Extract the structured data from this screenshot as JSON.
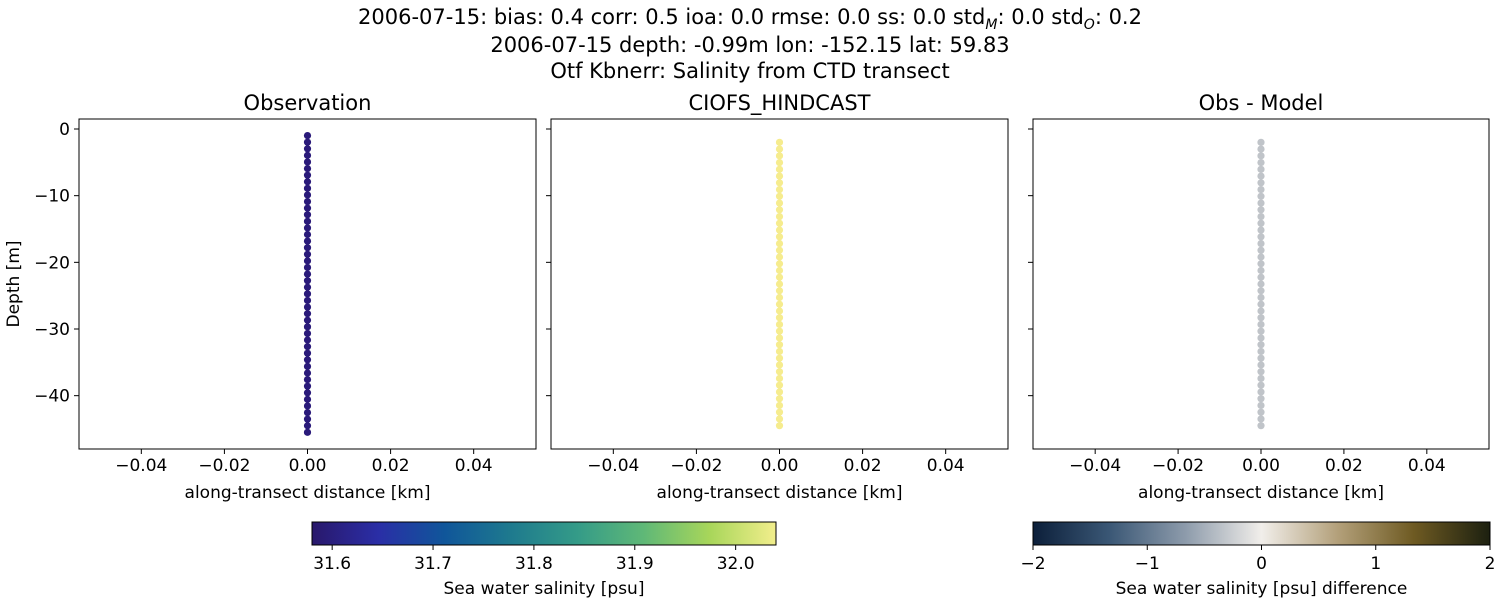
{
  "figure": {
    "title_lines": [
      "2006-07-15: bias: 0.4  corr: 0.5  ioa: 0.0  rmse: 0.0  ss: 0.0  std",
      "2006-07-15 depth: -0.99m lon: -152.15 lat: 59.83",
      "Otf Kbnerr: Salinity from CTD transect"
    ],
    "title_stats_suffix": [
      {
        "sub": "M",
        "text": ": 0.0  std"
      },
      {
        "sub": "O",
        "text": ": 0.2"
      }
    ]
  },
  "chart_data": [
    {
      "type": "scatter",
      "title": "Observation",
      "xlabel": "along-transect distance [km]",
      "ylabel": "Depth [m]",
      "xlim": [
        -0.055,
        0.055
      ],
      "ylim": [
        -48,
        1.5
      ],
      "xticks": [
        -0.04,
        -0.02,
        0.0,
        0.02,
        0.04
      ],
      "xtick_labels": [
        "−0.04",
        "−0.02",
        "0.00",
        "0.02",
        "0.04"
      ],
      "yticks": [
        0,
        -10,
        -20,
        -30,
        -40
      ],
      "ytick_labels": [
        "0",
        "−10",
        "−20",
        "−30",
        "−40"
      ],
      "grid": false,
      "x_constant": 0.0,
      "depth_range": [
        -0.99,
        -45.5
      ],
      "point_count": 46,
      "colormap": "haline",
      "color_value": 31.6,
      "point_color": "#2a1a7a"
    },
    {
      "type": "scatter",
      "title": "CIOFS_HINDCAST",
      "xlabel": "along-transect distance [km]",
      "ylabel": "",
      "xlim": [
        -0.055,
        0.055
      ],
      "ylim": [
        -48,
        1.5
      ],
      "xticks": [
        -0.04,
        -0.02,
        0.0,
        0.02,
        0.04
      ],
      "xtick_labels": [
        "−0.04",
        "−0.02",
        "0.00",
        "0.02",
        "0.04"
      ],
      "yticks": [
        0,
        -10,
        -20,
        -30,
        -40
      ],
      "ytick_labels": [],
      "grid": false,
      "x_constant": 0.0,
      "depth_range": [
        -2.0,
        -44.5
      ],
      "point_count": 43,
      "colormap": "haline",
      "color_value": 32.04,
      "point_color": "#f6ec8e"
    },
    {
      "type": "scatter",
      "title": "Obs - Model",
      "xlabel": "along-transect distance [km]",
      "ylabel": "",
      "xlim": [
        -0.055,
        0.055
      ],
      "ylim": [
        -48,
        1.5
      ],
      "xticks": [
        -0.04,
        -0.02,
        0.0,
        0.02,
        0.04
      ],
      "xtick_labels": [
        "−0.04",
        "−0.02",
        "0.00",
        "0.02",
        "0.04"
      ],
      "yticks": [
        0,
        -10,
        -20,
        -30,
        -40
      ],
      "ytick_labels": [],
      "grid": false,
      "x_constant": 0.0,
      "depth_range": [
        -2.0,
        -44.5
      ],
      "point_count": 43,
      "colormap": "diff",
      "color_value": -0.4,
      "point_color": "#c0c4c9"
    }
  ],
  "colorbars": [
    {
      "label": "Sea water salinity [psu]",
      "range": [
        31.58,
        32.04
      ],
      "ticks": [
        31.6,
        31.7,
        31.8,
        31.9,
        32.0
      ],
      "tick_labels": [
        "31.6",
        "31.7",
        "31.8",
        "31.9",
        "32.0"
      ],
      "stops": [
        "#29186b",
        "#2a2ea6",
        "#10569a",
        "#1e7a8e",
        "#349b88",
        "#5fb877",
        "#a8d65a",
        "#f2ee8c"
      ]
    },
    {
      "label": "Sea water salinity [psu] difference",
      "range": [
        -2,
        2
      ],
      "ticks": [
        -2,
        -1,
        0,
        1,
        2
      ],
      "tick_labels": [
        "−2",
        "−1",
        "0",
        "1",
        "2"
      ],
      "stops": [
        "#0c1f3a",
        "#3a5775",
        "#8d9bab",
        "#f1eeea",
        "#b3a07a",
        "#6e5a22",
        "#1c2010"
      ]
    }
  ]
}
